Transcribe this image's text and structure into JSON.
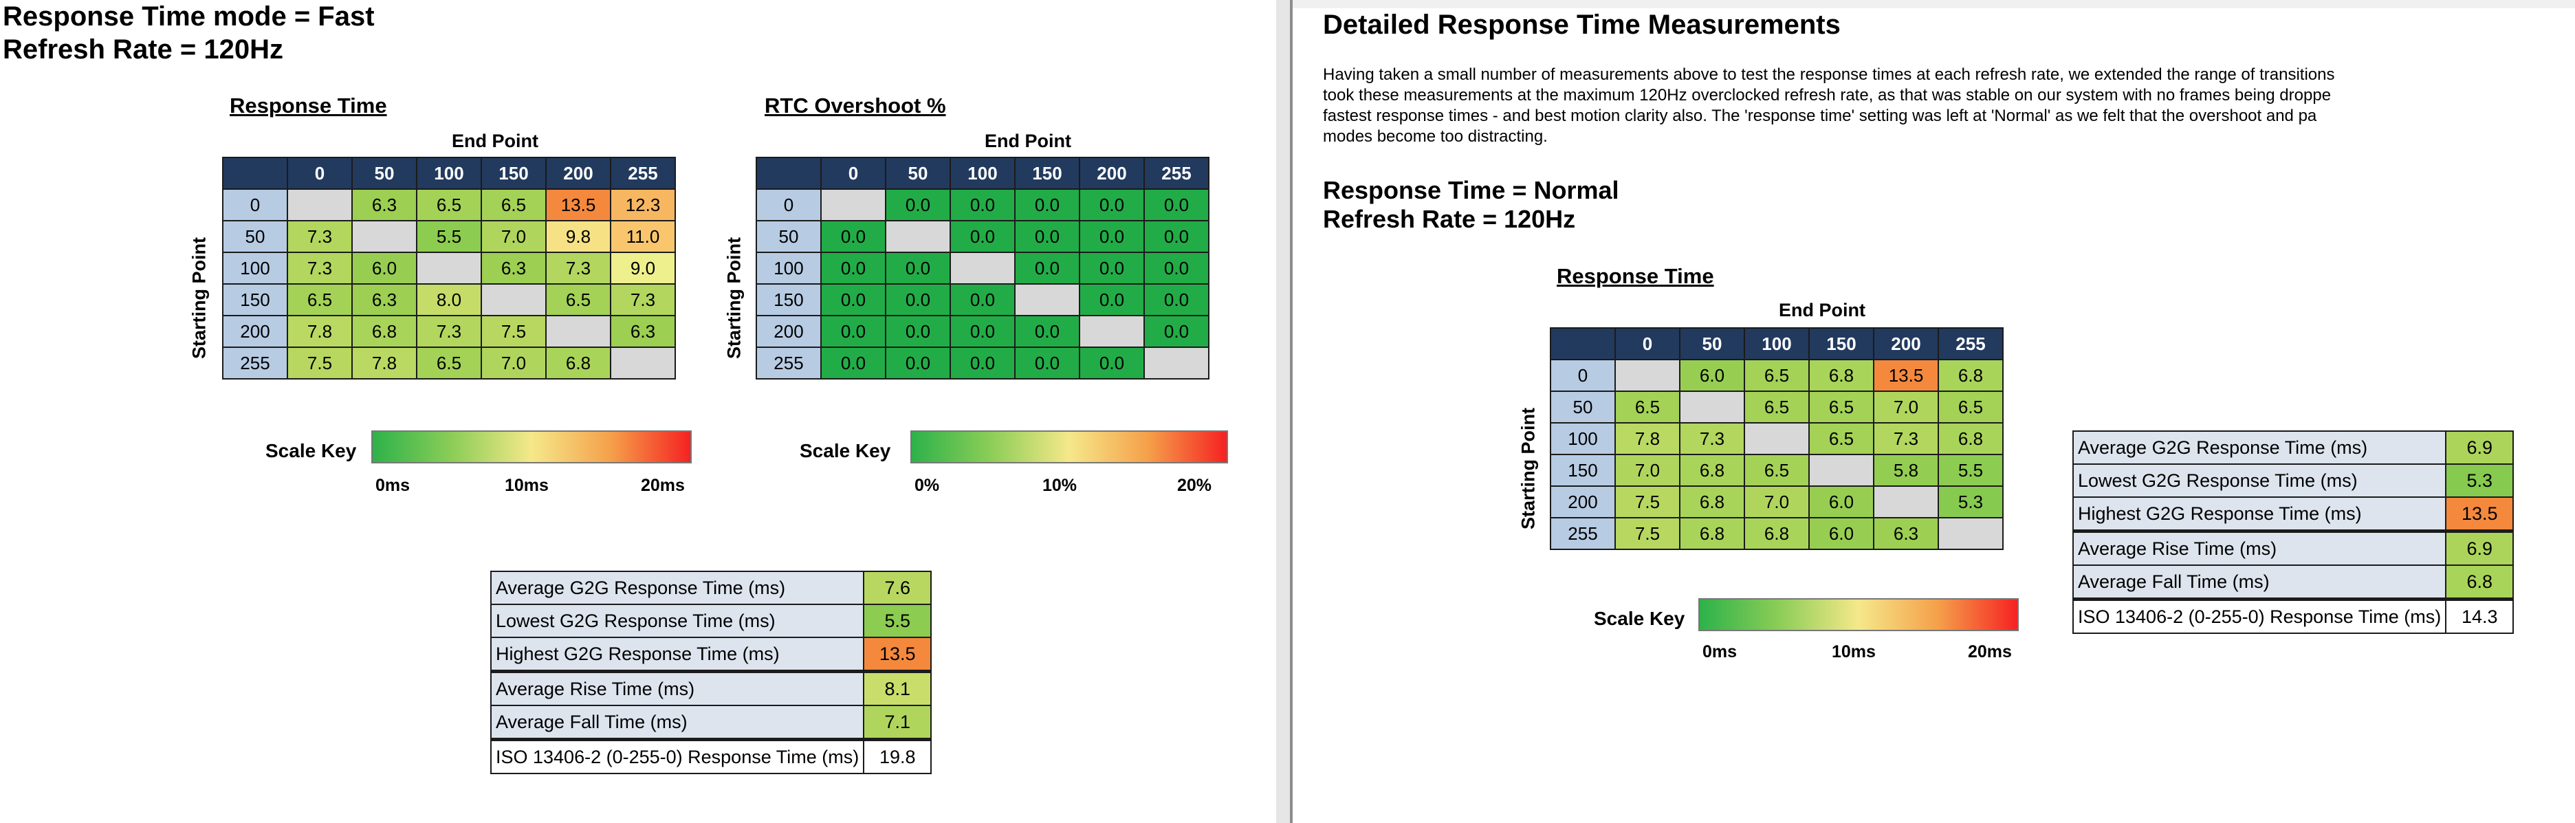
{
  "left": {
    "mode_line1": "Response Time mode = Fast",
    "mode_line2": "Refresh Rate = 120Hz",
    "response_table": {
      "caption": "Response Time",
      "end_label": "End Point",
      "start_label": "Starting Point",
      "columns": [
        "0",
        "50",
        "100",
        "150",
        "200",
        "255"
      ],
      "rows": [
        {
          "head": "0",
          "cells": [
            "",
            "6.3",
            "6.5",
            "6.5",
            "13.5",
            "12.3"
          ]
        },
        {
          "head": "50",
          "cells": [
            "7.3",
            "",
            "5.5",
            "7.0",
            "9.8",
            "11.0"
          ]
        },
        {
          "head": "100",
          "cells": [
            "7.3",
            "6.0",
            "",
            "6.3",
            "7.3",
            "9.0"
          ]
        },
        {
          "head": "150",
          "cells": [
            "6.5",
            "6.3",
            "8.0",
            "",
            "6.5",
            "7.3"
          ]
        },
        {
          "head": "200",
          "cells": [
            "7.8",
            "6.8",
            "7.3",
            "7.5",
            "",
            "6.3"
          ]
        },
        {
          "head": "255",
          "cells": [
            "7.5",
            "7.8",
            "6.5",
            "7.0",
            "6.8",
            ""
          ]
        }
      ],
      "colors": [
        [
          "",
          "#9ccf52",
          "#a3d256",
          "#a3d256",
          "#f4893e",
          "#f7b761"
        ],
        [
          "#b2d65e",
          "",
          "#8ccc50",
          "#b0d55d",
          "#f6e285",
          "#f9c66e"
        ],
        [
          "#b2d65e",
          "#97ce52",
          "",
          "#9ccf52",
          "#b2d65e",
          "#eef08d"
        ],
        [
          "#a3d256",
          "#9ccf52",
          "#c6dc69",
          "",
          "#a3d256",
          "#b2d65e"
        ],
        [
          "#bad962",
          "#a9d45a",
          "#b2d65e",
          "#b8d761",
          "",
          "#9ccf52"
        ],
        [
          "#b8d761",
          "#bad962",
          "#a3d256",
          "#b0d55d",
          "#a9d45a",
          ""
        ]
      ]
    },
    "overshoot_table": {
      "caption": "RTC Overshoot %",
      "end_label": "End Point",
      "start_label": "Starting Point",
      "columns": [
        "0",
        "50",
        "100",
        "150",
        "200",
        "255"
      ],
      "rows": [
        {
          "head": "0",
          "cells": [
            "",
            "0.0",
            "0.0",
            "0.0",
            "0.0",
            "0.0"
          ]
        },
        {
          "head": "50",
          "cells": [
            "0.0",
            "",
            "0.0",
            "0.0",
            "0.0",
            "0.0"
          ]
        },
        {
          "head": "100",
          "cells": [
            "0.0",
            "0.0",
            "",
            "0.0",
            "0.0",
            "0.0"
          ]
        },
        {
          "head": "150",
          "cells": [
            "0.0",
            "0.0",
            "0.0",
            "",
            "0.0",
            "0.0"
          ]
        },
        {
          "head": "200",
          "cells": [
            "0.0",
            "0.0",
            "0.0",
            "0.0",
            "",
            "0.0"
          ]
        },
        {
          "head": "255",
          "cells": [
            "0.0",
            "0.0",
            "0.0",
            "0.0",
            "0.0",
            ""
          ]
        }
      ],
      "cell_color": "#22ac47"
    },
    "scale_key_rt": {
      "label": "Scale Key",
      "ticks": [
        "0ms",
        "10ms",
        "20ms"
      ]
    },
    "scale_key_os": {
      "label": "Scale Key",
      "ticks": [
        "0%",
        "10%",
        "20%"
      ]
    },
    "stats": [
      {
        "label": "Average G2G Response Time (ms)",
        "value": "7.6",
        "color": "#b8d761"
      },
      {
        "label": "Lowest G2G Response Time (ms)",
        "value": "5.5",
        "color": "#8ccc50"
      },
      {
        "label": "Highest G2G Response Time (ms)",
        "value": "13.5",
        "color": "#f4893e"
      },
      {
        "label": "Average Rise Time (ms)",
        "value": "8.1",
        "color": "#c9dd6b"
      },
      {
        "label": "Average Fall Time (ms)",
        "value": "7.1",
        "color": "#b0d55d"
      },
      {
        "label": "ISO 13406-2  (0-255-0) Response Time (ms)",
        "value": "19.8",
        "color": "#ffffff"
      }
    ]
  },
  "right": {
    "heading": "Detailed Response Time Measurements",
    "paragraph": [
      "Having taken a small number of measurements above to test the response times at each refresh rate, we extended the range of transitions",
      "took these measurements at the maximum 120Hz overclocked refresh rate, as that was stable on our system with no frames being droppe",
      "fastest response times - and best motion clarity also. The 'response time' setting was left at 'Normal' as we felt that the overshoot and pa",
      "modes become too distracting."
    ],
    "mode_line1": "Response Time = Normal",
    "mode_line2": "Refresh Rate = 120Hz",
    "response_table": {
      "caption": "Response Time",
      "end_label": "End Point",
      "start_label": "Starting Point",
      "columns": [
        "0",
        "50",
        "100",
        "150",
        "200",
        "255"
      ],
      "rows": [
        {
          "head": "0",
          "cells": [
            "",
            "6.0",
            "6.5",
            "6.8",
            "13.5",
            "6.8"
          ]
        },
        {
          "head": "50",
          "cells": [
            "6.5",
            "",
            "6.5",
            "6.5",
            "7.0",
            "6.5"
          ]
        },
        {
          "head": "100",
          "cells": [
            "7.8",
            "7.3",
            "",
            "6.5",
            "7.3",
            "6.8"
          ]
        },
        {
          "head": "150",
          "cells": [
            "7.0",
            "6.8",
            "6.5",
            "",
            "5.8",
            "5.5"
          ]
        },
        {
          "head": "200",
          "cells": [
            "7.5",
            "6.8",
            "7.0",
            "6.0",
            "",
            "5.3"
          ]
        },
        {
          "head": "255",
          "cells": [
            "7.5",
            "6.8",
            "6.8",
            "6.0",
            "6.3",
            ""
          ]
        }
      ],
      "colors": [
        [
          "",
          "#97ce52",
          "#a3d256",
          "#a9d45a",
          "#f4893e",
          "#a9d45a"
        ],
        [
          "#a3d256",
          "",
          "#a3d256",
          "#a3d256",
          "#b0d55d",
          "#a3d256"
        ],
        [
          "#bad962",
          "#b2d65e",
          "",
          "#a3d256",
          "#b2d65e",
          "#a9d45a"
        ],
        [
          "#b0d55d",
          "#a9d45a",
          "#a3d256",
          "",
          "#93cd51",
          "#8ccc50"
        ],
        [
          "#b8d761",
          "#a9d45a",
          "#b0d55d",
          "#97ce52",
          "",
          "#86ca4f"
        ],
        [
          "#b8d761",
          "#a9d45a",
          "#a9d45a",
          "#97ce52",
          "#9ccf52",
          ""
        ]
      ]
    },
    "scale_key_rt": {
      "label": "Scale Key",
      "ticks": [
        "0ms",
        "10ms",
        "20ms"
      ]
    },
    "stats": [
      {
        "label": "Average G2G Response Time (ms)",
        "value": "6.9",
        "color": "#acd45b"
      },
      {
        "label": "Lowest G2G Response Time (ms)",
        "value": "5.3",
        "color": "#86ca4f"
      },
      {
        "label": "Highest G2G Response Time (ms)",
        "value": "13.5",
        "color": "#f4893e"
      },
      {
        "label": "Average Rise Time (ms)",
        "value": "6.9",
        "color": "#acd45b"
      },
      {
        "label": "Average Fall Time (ms)",
        "value": "6.8",
        "color": "#a9d45a"
      },
      {
        "label": "ISO 13406-2  (0-255-0) Response Time (ms)",
        "value": "14.3",
        "color": "#ffffff"
      }
    ]
  }
}
